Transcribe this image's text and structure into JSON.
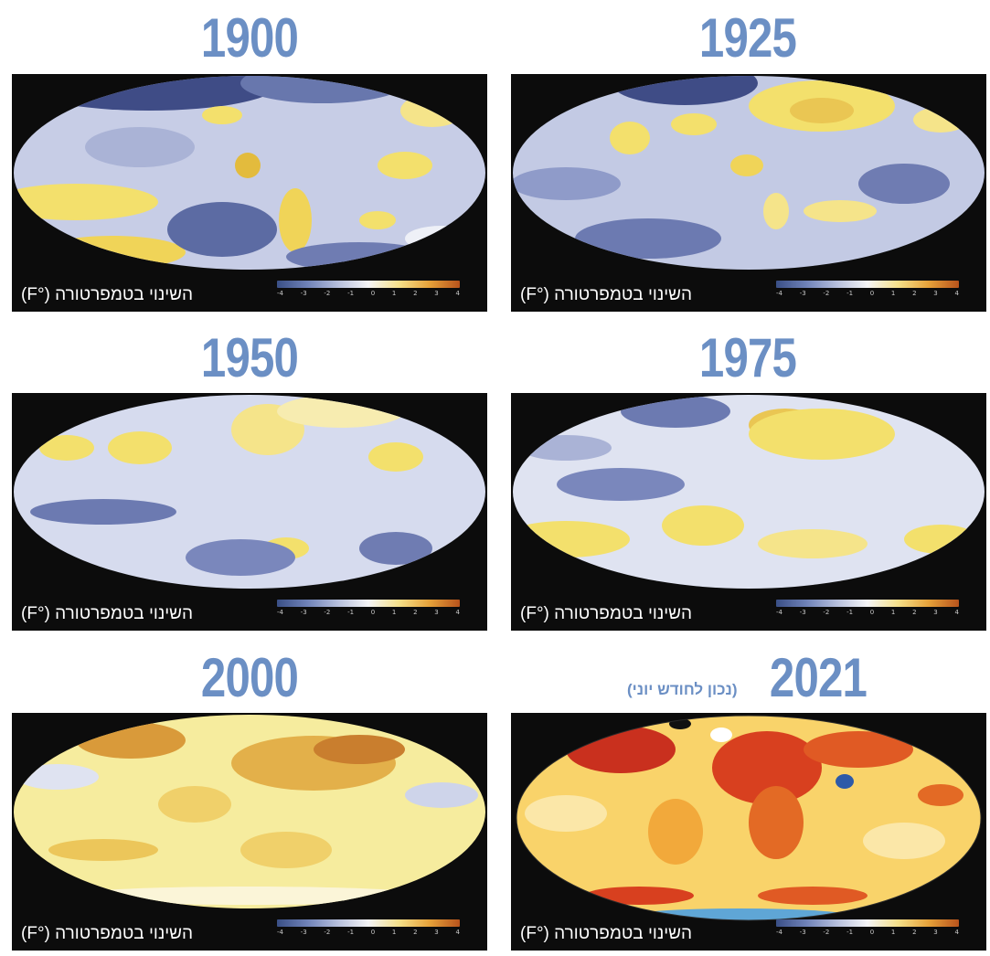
{
  "caption": "השינוי בטמפרטורה (°F)",
  "legend_ticks": [
    "-4",
    "-3",
    "-2",
    "-1",
    "0",
    "1",
    "2",
    "3",
    "4"
  ],
  "legend_colors": [
    "#3a4f86",
    "#6f82b8",
    "#b6bfdc",
    "#f4f4f6",
    "#f5e08a",
    "#e6a23a",
    "#b8531c"
  ],
  "panels": [
    {
      "year": "1900",
      "tone": "cool"
    },
    {
      "year": "1925",
      "tone": "cool"
    },
    {
      "year": "1950",
      "tone": "cool"
    },
    {
      "year": "1975",
      "tone": "cool"
    },
    {
      "year": "2000",
      "tone": "warm"
    },
    {
      "year": "2021",
      "tone": "hot",
      "note": "(נכון לחודש יוני)"
    }
  ],
  "colors": {
    "year_title": "#6b8fc4",
    "panel_background": "#0c0c0c",
    "ocean_cool": "#c7cde6",
    "ocean_warm": "#f6ec9e",
    "ocean_hot": "#f9d36a"
  }
}
